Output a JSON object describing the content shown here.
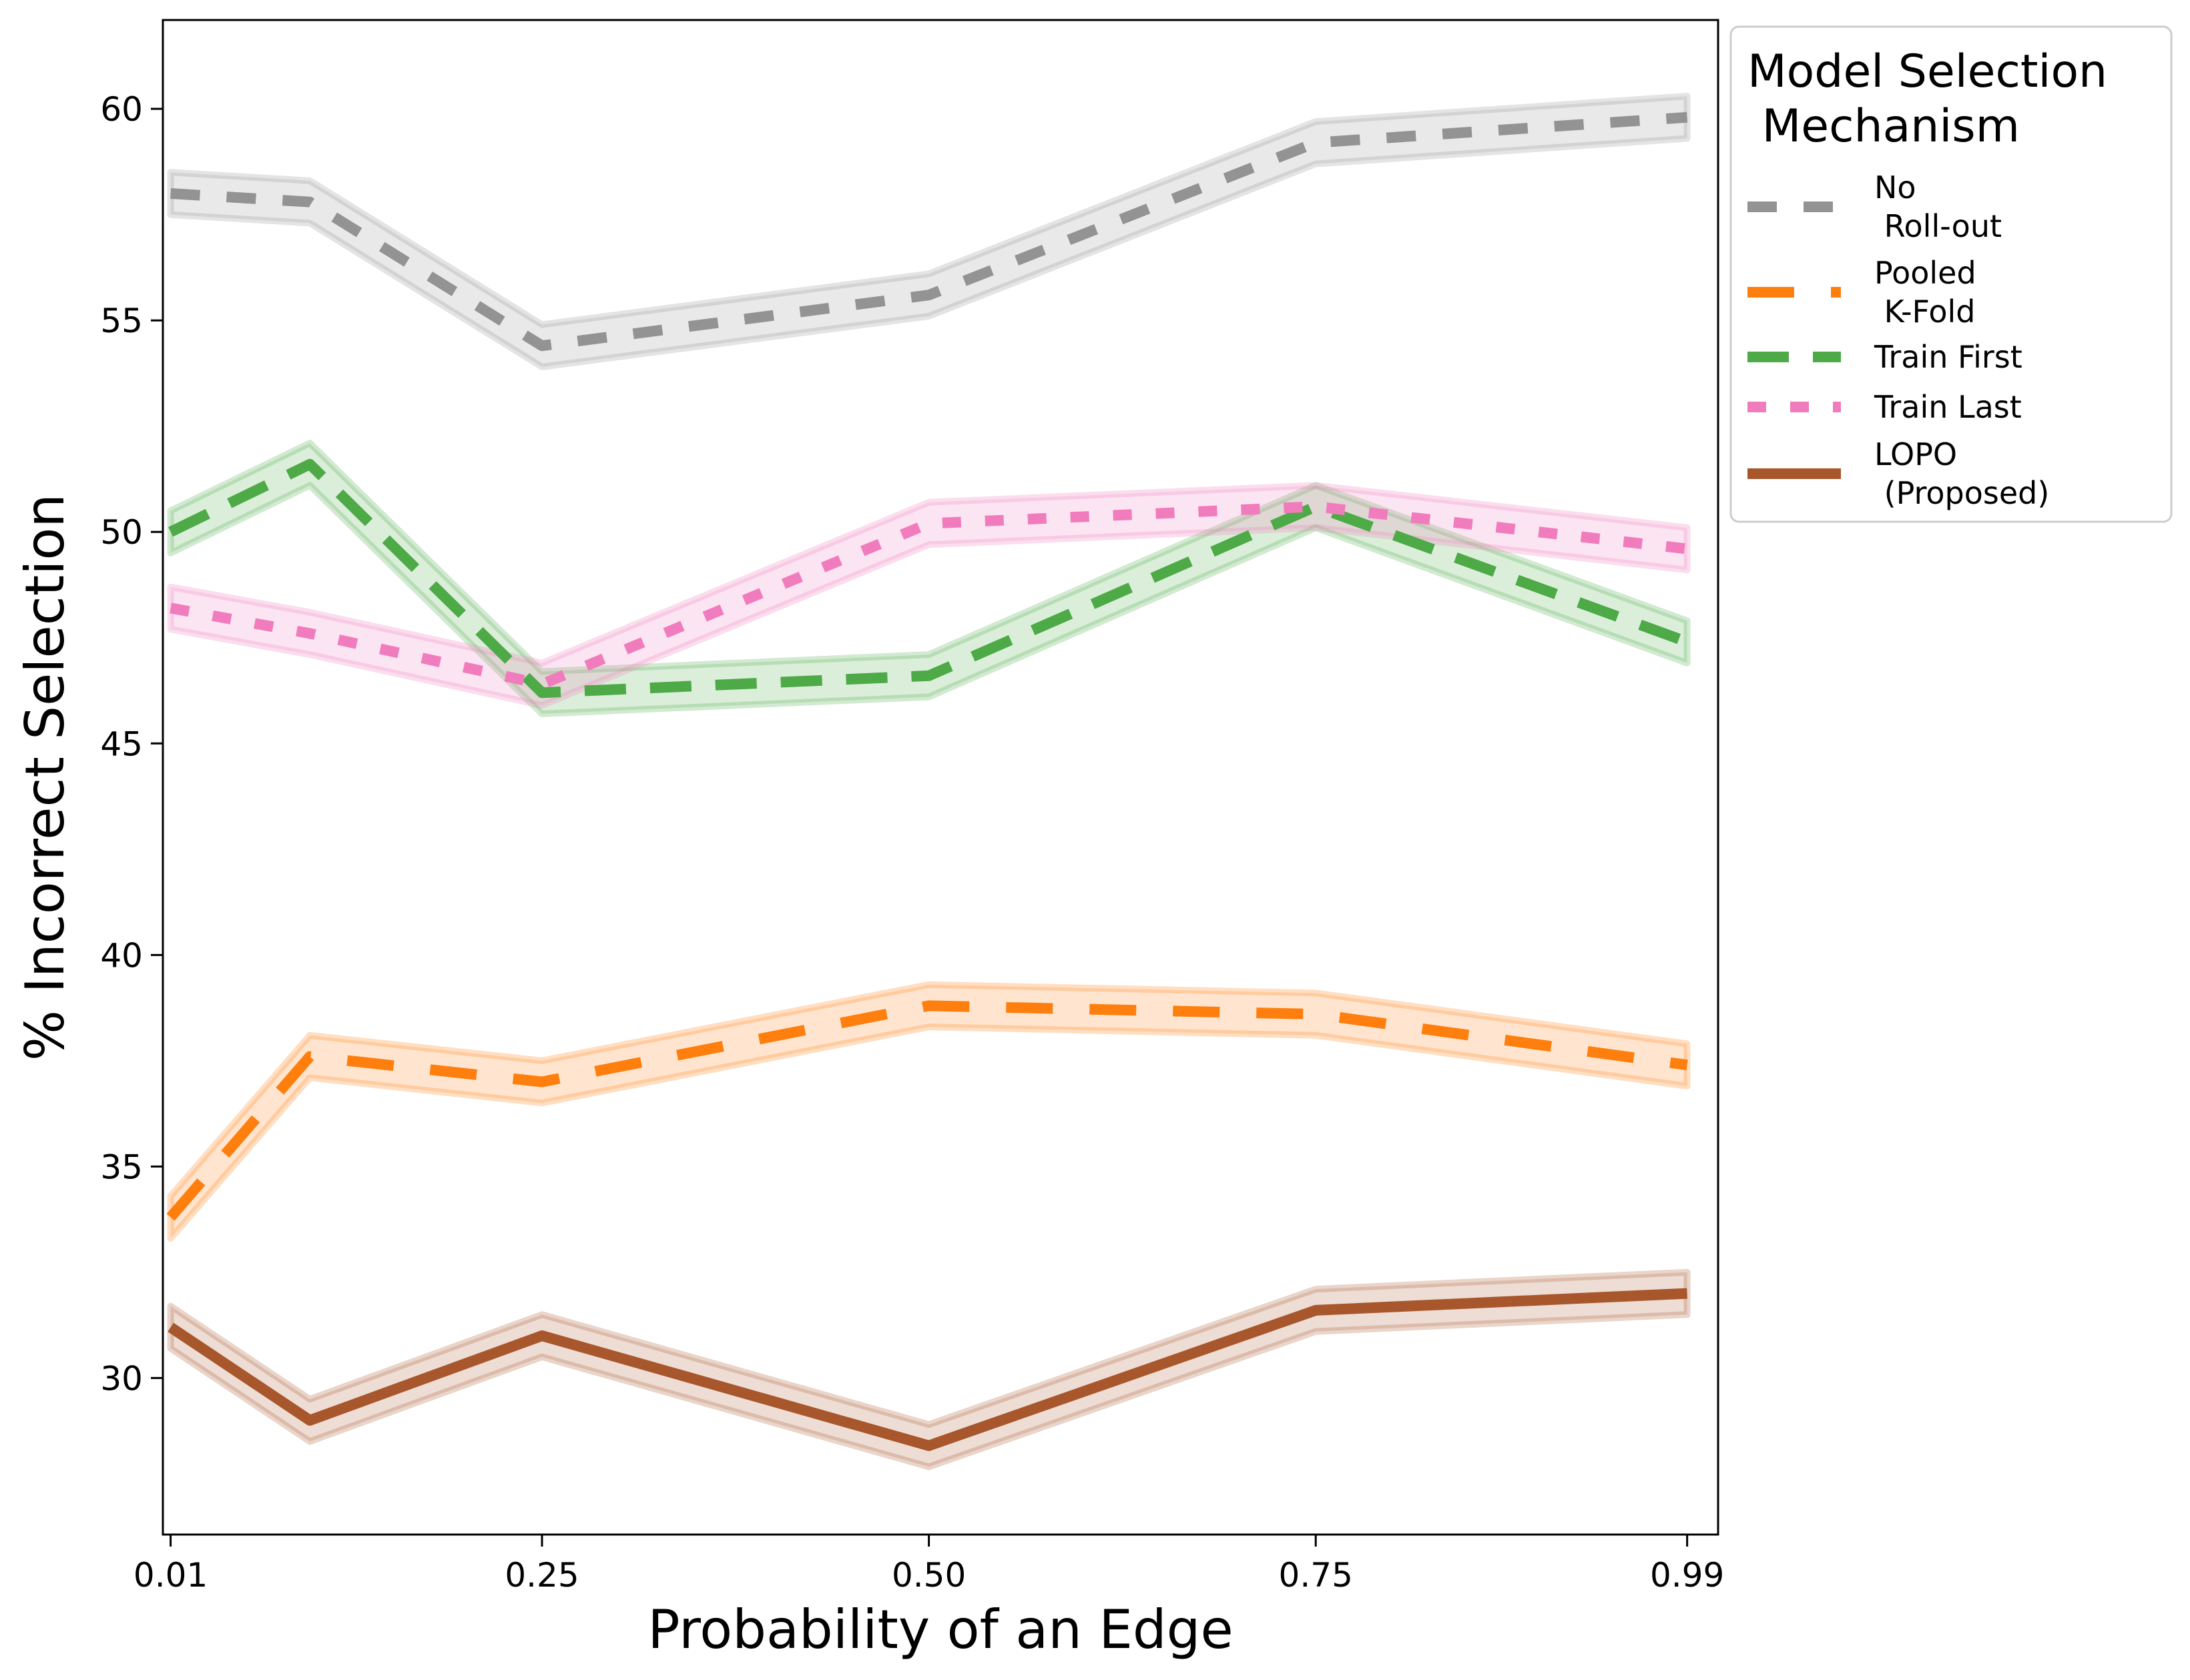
{
  "chart_data": {
    "type": "line",
    "xlabel": "Probability of an Edge",
    "ylabel": "% Incorrect Selection",
    "x": [
      0.01,
      0.1,
      0.25,
      0.5,
      0.75,
      0.99
    ],
    "xlim": [
      0.005,
      1.01
    ],
    "ylim": [
      26.3,
      62.1
    ],
    "x_ticks": [
      0.01,
      0.25,
      0.5,
      0.75,
      0.99
    ],
    "x_tick_labels": [
      "0.01",
      "0.25",
      "0.50",
      "0.75",
      "0.99"
    ],
    "y_ticks": [
      30,
      35,
      40,
      45,
      50,
      55,
      60
    ],
    "y_tick_labels": [
      "30",
      "35",
      "40",
      "45",
      "50",
      "55",
      "60"
    ],
    "grid": false,
    "legend": {
      "title": "Model Selection\n Mechanism",
      "placement": "outside-top-right"
    },
    "series": [
      {
        "name": "No\n Roll-out",
        "color": "#939393",
        "dash": "dashed-short",
        "values": [
          58.0,
          57.8,
          54.4,
          55.6,
          59.2,
          59.8
        ],
        "band": 0.5
      },
      {
        "name": "Pooled\n K-Fold",
        "color": "#ff7f0e",
        "dash": "dashed-long",
        "values": [
          33.8,
          37.6,
          37.0,
          38.8,
          38.6,
          37.4
        ],
        "band": 0.5
      },
      {
        "name": "Train First",
        "color": "#4daa47",
        "dash": "dashed",
        "values": [
          50.0,
          51.6,
          46.2,
          46.6,
          50.6,
          47.4
        ],
        "band": 0.5
      },
      {
        "name": "Train Last",
        "color": "#f17cbd",
        "dash": "dotted",
        "values": [
          48.2,
          47.6,
          46.4,
          50.2,
          50.6,
          49.6
        ],
        "band": 0.5
      },
      {
        "name": "LOPO\n (Proposed)",
        "color": "#a8572c",
        "dash": "solid",
        "values": [
          31.2,
          29.0,
          31.0,
          28.4,
          31.6,
          32.0
        ],
        "band": 0.5
      }
    ]
  }
}
